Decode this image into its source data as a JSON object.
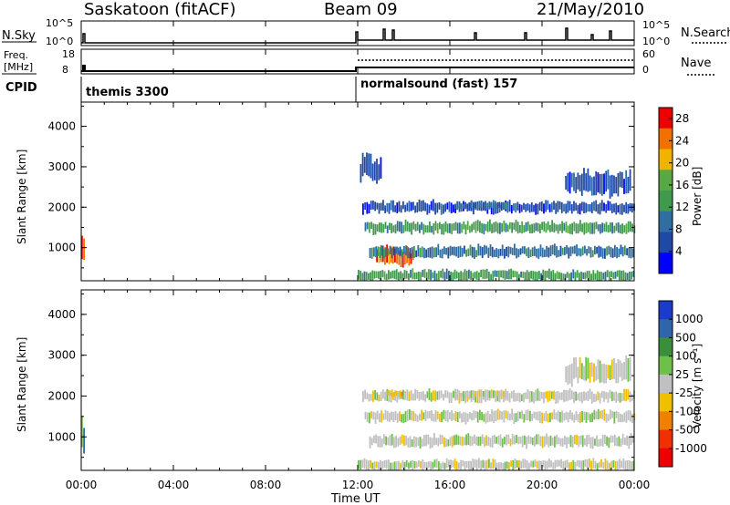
{
  "header": {
    "station": "Saskatoon (fitACF)",
    "beam": "Beam 09",
    "date": "21/May/2010"
  },
  "sky_panel": {
    "left_label": "N.Sky",
    "ticks_left": [
      "10^5",
      "10^0"
    ],
    "right_label": "N.Search",
    "ticks_right": [
      "10^5",
      "10^0"
    ]
  },
  "freq_panel": {
    "left_label_line1": "Freq.",
    "left_label_line2": "[MHz]",
    "ticks_left": [
      "18",
      "8"
    ],
    "right_label": "Nave",
    "ticks_right": [
      "60",
      "0"
    ]
  },
  "cpid": {
    "label": "CPID",
    "segments": [
      {
        "name": "themis 3300",
        "start_h": 0
      },
      {
        "name": "normalsound (fast) 157",
        "start_h": 12
      }
    ]
  },
  "x_axis": {
    "label": "Time UT",
    "ticks": [
      "00:00",
      "04:00",
      "08:00",
      "12:00",
      "16:00",
      "20:00",
      "00:00"
    ],
    "range_h": [
      0,
      24
    ]
  },
  "chart_data": [
    {
      "type": "heatmap",
      "title": "",
      "xlabel": "Time UT",
      "ylabel": "Slant Range [km]",
      "xlim": [
        0,
        24
      ],
      "ylim": [
        180,
        4600
      ],
      "yticks": [
        "1000",
        "2000",
        "3000",
        "4000"
      ],
      "colorbar": {
        "label": "Power [dB]",
        "ticks": [
          "28",
          "24",
          "20",
          "16",
          "12",
          "8",
          "4"
        ],
        "range": [
          0,
          30
        ]
      },
      "features": [
        {
          "t": [
            0.0,
            0.15
          ],
          "r": [
            600,
            1200
          ],
          "value": 26
        },
        {
          "t": [
            12.0,
            24.0
          ],
          "r": [
            180,
            450
          ],
          "value": 14
        },
        {
          "t": [
            12.8,
            14.4
          ],
          "r": [
            550,
            1000
          ],
          "value": 26
        },
        {
          "t": [
            12.5,
            24.0
          ],
          "r": [
            750,
            1050
          ],
          "value": 12
        },
        {
          "t": [
            12.3,
            24.0
          ],
          "r": [
            1350,
            1650
          ],
          "value": 16
        },
        {
          "t": [
            12.2,
            24.0
          ],
          "r": [
            1850,
            2150
          ],
          "value": 8
        },
        {
          "t": [
            12.1,
            13.0
          ],
          "r": [
            2600,
            3300
          ],
          "value": 6
        },
        {
          "t": [
            16.2,
            18.5
          ],
          "r": [
            1950,
            2150
          ],
          "value": 12
        },
        {
          "t": [
            21.0,
            23.8
          ],
          "r": [
            2300,
            2900
          ],
          "value": 8
        }
      ]
    },
    {
      "type": "heatmap",
      "title": "",
      "xlabel": "Time UT",
      "ylabel": "Slant Range [km]",
      "xlim": [
        0,
        24
      ],
      "ylim": [
        180,
        4600
      ],
      "yticks": [
        "1000",
        "2000",
        "3000",
        "4000"
      ],
      "colorbar": {
        "label": "Velocity [m s⁻¹]",
        "ticks": [
          "1000",
          "500",
          "100",
          "25",
          "-25",
          "-100",
          "-500",
          "-1000"
        ],
        "range": [
          -1000,
          1000
        ]
      },
      "features": [
        {
          "t": [
            0.0,
            0.15
          ],
          "r": [
            600,
            1400
          ],
          "value": 500
        },
        {
          "t": [
            12.0,
            24.0
          ],
          "r": [
            180,
            450
          ],
          "value": 80
        },
        {
          "t": [
            12.5,
            24.0
          ],
          "r": [
            750,
            1050
          ],
          "value": 0
        },
        {
          "t": [
            12.3,
            24.0
          ],
          "r": [
            1350,
            1650
          ],
          "value": 0
        },
        {
          "t": [
            12.2,
            24.0
          ],
          "r": [
            1850,
            2150
          ],
          "value": 0
        },
        {
          "t": [
            13.2,
            13.9
          ],
          "r": [
            1950,
            2150
          ],
          "value": -150
        },
        {
          "t": [
            16.2,
            18.5
          ],
          "r": [
            1950,
            2150
          ],
          "value": 0
        },
        {
          "t": [
            21.0,
            23.8
          ],
          "r": [
            2300,
            2900
          ],
          "value": 0
        }
      ]
    }
  ],
  "colors": {
    "power_scale": [
      "#0000ff",
      "#1e4aa6",
      "#2f6ea0",
      "#3f9a4e",
      "#58a844",
      "#f0b400",
      "#f07000",
      "#ee0000"
    ],
    "velocity_scale": [
      "#1a3cc8",
      "#2f66aa",
      "#3a8f3a",
      "#6dc04a",
      "#c0c0c0",
      "#f0c000",
      "#f08000",
      "#f03000",
      "#ee0000"
    ]
  }
}
